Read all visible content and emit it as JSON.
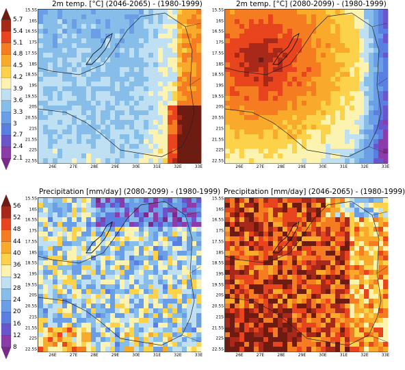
{
  "colorbar_temp": {
    "labels": [
      "5.7",
      "5.4",
      "5.1",
      "4.8",
      "4.5",
      "4.2",
      "3.9",
      "3.6",
      "3.3",
      "3",
      "2.7",
      "2.4",
      "2.1"
    ],
    "colors": [
      "#6e1c12",
      "#a8281a",
      "#e8441e",
      "#f57c20",
      "#f9aa2b",
      "#fbd24a",
      "#fcf3b0",
      "#bfe0f2",
      "#86bde9",
      "#6a9ee6",
      "#5b7fe0",
      "#6a55cc",
      "#8b3ca8",
      "#7a2a8a"
    ]
  },
  "colorbar_precip": {
    "labels": [
      "56",
      "52",
      "48",
      "44",
      "40",
      "36",
      "32",
      "28",
      "24",
      "20",
      "16",
      "12",
      "8"
    ],
    "colors": [
      "#6e1c12",
      "#a8281a",
      "#e8441e",
      "#f57c20",
      "#f9aa2b",
      "#fbd24a",
      "#fcf3b0",
      "#bfe0f2",
      "#86bde9",
      "#6a9ee6",
      "#5b7fe0",
      "#6a55cc",
      "#8b3ca8",
      "#7a2a8a"
    ]
  },
  "panels": [
    {
      "title": "2m temp. [°C]   (2046-2065) - (1980-1999)",
      "theme": "cool"
    },
    {
      "title": "2m temp. [°C]   (2080-2099) - (1980-1999)",
      "theme": "hot"
    },
    {
      "title": "Precipitation [mm/day]   (2080-2099) - (1980-1999)",
      "theme": "wet"
    },
    {
      "title": "Precipitation [mm/day]   (2046-2065) - (1980-1999)",
      "theme": "dry"
    }
  ],
  "lat_labels": [
    "15.5S",
    "16S",
    "16.5S",
    "17S",
    "17.5S",
    "18S",
    "18.5S",
    "19S",
    "19.5S",
    "20S",
    "20.5S",
    "21S",
    "21.5S",
    "22S",
    "22.5S"
  ],
  "lon_labels": [
    "26E",
    "27E",
    "28E",
    "29E",
    "30E",
    "31E",
    "32E",
    "33E"
  ]
}
